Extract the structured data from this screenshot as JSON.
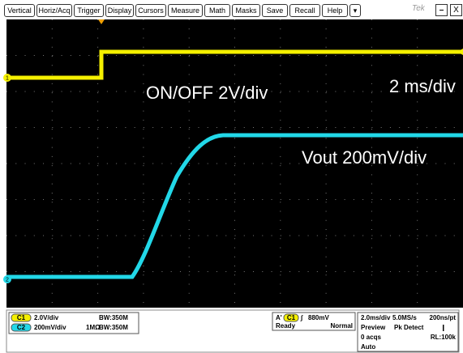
{
  "menu": {
    "buttons": [
      "Vertical",
      "Horiz/Acq",
      "Trigger",
      "Display",
      "Cursors",
      "Measure",
      "Math",
      "Masks",
      "Save",
      "Recall",
      "Help",
      "▾"
    ],
    "logo": "Tek",
    "minimize": "–",
    "close": "X"
  },
  "screen": {
    "ch1_marker": "1",
    "ch2_marker": "2",
    "annotations": [
      "ON/OFF 2V/div",
      "2 ms/div",
      "Vout 200mV/div"
    ]
  },
  "status": {
    "ch1": {
      "badge": "C1",
      "scale": "2.0V/div",
      "bandwidth": "BW:350M"
    },
    "ch2": {
      "badge": "C2",
      "scale": "200mV/div",
      "coupling": "1MΩ",
      "bandwidth": "BW:350M"
    },
    "trigger": {
      "mode_letter": "A'",
      "source": "C1",
      "slope": "∫",
      "level": "880mV",
      "state": "Ready",
      "type": "Normal"
    },
    "acquisition": {
      "line1": [
        "2.0ms/div",
        "5.0MS/s",
        "200ns/pt"
      ],
      "line2": [
        "Preview",
        "Pk Detect"
      ],
      "line3": [
        "0 acqs",
        "RL:100k"
      ],
      "line4": "Auto"
    }
  }
}
